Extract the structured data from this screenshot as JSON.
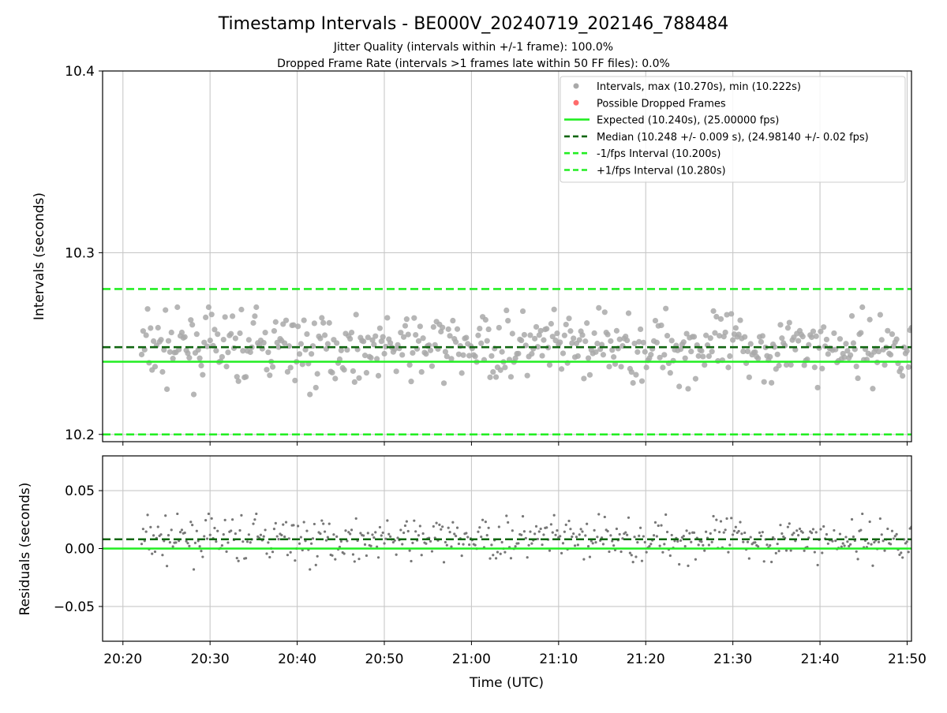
{
  "title": "Timestamp Intervals - BE000V_20240719_202146_788484",
  "subtitle_lines": [
    "Jitter Quality (intervals within +/-1 frame): 100.0%",
    "Dropped Frame Rate (intervals >1 frames late within 50 FF files): 0.0%"
  ],
  "colors": {
    "points": "#a9a9a9",
    "dropped": "#ff6b6b",
    "expected": "#22ee22",
    "median": "#116611",
    "bounds": "#22ee22",
    "residual_points": "#777777",
    "grid": "#c8c8c8"
  },
  "chart_data": [
    {
      "type": "scatter",
      "panel": "top",
      "ylabel": "Intervals (seconds)",
      "xlabel": "",
      "ylim": [
        10.196,
        10.4
      ],
      "yticks": [
        10.2,
        10.3,
        10.4
      ],
      "ytick_labels": [
        "10.2",
        "10.3",
        "10.4"
      ],
      "xlim": [
        "20:17:40",
        "21:50:30"
      ],
      "grid": true,
      "legend_position": "upper right",
      "legend": [
        "Intervals, max (10.270s), min (10.222s)",
        "Possible Dropped Frames",
        "Expected (10.240s), (25.00000 fps)",
        "Median (10.248 +/- 0.009 s), (24.98140 +/- 0.02 fps)",
        "-1/fps Interval (10.200s)",
        "+1/fps Interval (10.280s)"
      ],
      "lines": {
        "expected": 10.24,
        "median": 10.248,
        "minus_one_fps": 10.2,
        "plus_one_fps": 10.28
      },
      "series": [
        {
          "name": "Intervals, max (10.270s), min (10.222s)",
          "x_range": [
            "20:22:09",
            "21:50:30"
          ],
          "interval_s": 10.24,
          "count": 518,
          "median": 10.248,
          "max": 10.27,
          "min": 10.222,
          "spread": 0.009
        },
        {
          "name": "Possible Dropped Frames",
          "x": [],
          "y": []
        }
      ]
    },
    {
      "type": "scatter",
      "panel": "bottom",
      "ylabel": "Residuals (seconds)",
      "xlabel": "Time (UTC)",
      "ylim": [
        -0.08,
        0.08
      ],
      "yticks": [
        -0.05,
        0.0,
        0.05
      ],
      "ytick_labels": [
        "−0.05",
        "0.00",
        "0.05"
      ],
      "xticks": [
        "20:20",
        "20:30",
        "20:40",
        "20:50",
        "21:00",
        "21:10",
        "21:20",
        "21:30",
        "21:40",
        "21:50"
      ],
      "grid": true,
      "lines": {
        "zero": 0.0,
        "median_residual": 0.008
      },
      "series": [
        {
          "name": "Residuals",
          "derived_from": "Intervals minus expected (10.240s)"
        }
      ]
    }
  ]
}
